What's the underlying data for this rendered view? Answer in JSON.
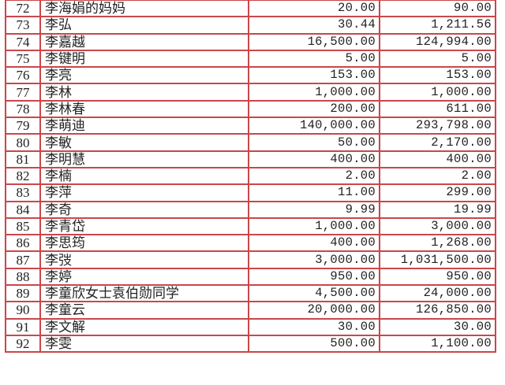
{
  "rows": [
    {
      "no": "72",
      "name": "李海娟的妈妈",
      "amount": "20.00",
      "total": "90.00"
    },
    {
      "no": "73",
      "name": "李弘",
      "amount": "30.44",
      "total": "1,211.56"
    },
    {
      "no": "74",
      "name": "李嘉越",
      "amount": "16,500.00",
      "total": "124,994.00"
    },
    {
      "no": "75",
      "name": "李键明",
      "amount": "5.00",
      "total": "5.00"
    },
    {
      "no": "76",
      "name": "李亮",
      "amount": "153.00",
      "total": "153.00"
    },
    {
      "no": "77",
      "name": "李林",
      "amount": "1,000.00",
      "total": "1,000.00"
    },
    {
      "no": "78",
      "name": "李林春",
      "amount": "200.00",
      "total": "611.00"
    },
    {
      "no": "79",
      "name": "李萌迪",
      "amount": "140,000.00",
      "total": "293,798.00"
    },
    {
      "no": "80",
      "name": "李敏",
      "amount": "50.00",
      "total": "2,170.00"
    },
    {
      "no": "81",
      "name": "李明慧",
      "amount": "400.00",
      "total": "400.00"
    },
    {
      "no": "82",
      "name": "李楠",
      "amount": "2.00",
      "total": "2.00"
    },
    {
      "no": "83",
      "name": "李萍",
      "amount": "11.00",
      "total": "299.00"
    },
    {
      "no": "84",
      "name": "李奇",
      "amount": "9.99",
      "total": "19.99"
    },
    {
      "no": "85",
      "name": "李青岱",
      "amount": "1,000.00",
      "total": "3,000.00"
    },
    {
      "no": "86",
      "name": "李思筠",
      "amount": "400.00",
      "total": "1,268.00"
    },
    {
      "no": "87",
      "name": "李弢",
      "amount": "3,000.00",
      "total": "1,031,500.00"
    },
    {
      "no": "88",
      "name": "李婷",
      "amount": "950.00",
      "total": "950.00"
    },
    {
      "no": "89",
      "name": "李童欣女士袁伯勋同学",
      "amount": "4,500.00",
      "total": "24,000.00"
    },
    {
      "no": "90",
      "name": "李童云",
      "amount": "20,000.00",
      "total": "126,850.00"
    },
    {
      "no": "91",
      "name": "李文解",
      "amount": "30.00",
      "total": "30.00"
    },
    {
      "no": "92",
      "name": "李雯",
      "amount": "500.00",
      "total": "1,100.00"
    }
  ],
  "colors": {
    "border": "#c9474a",
    "text": "#222222"
  }
}
